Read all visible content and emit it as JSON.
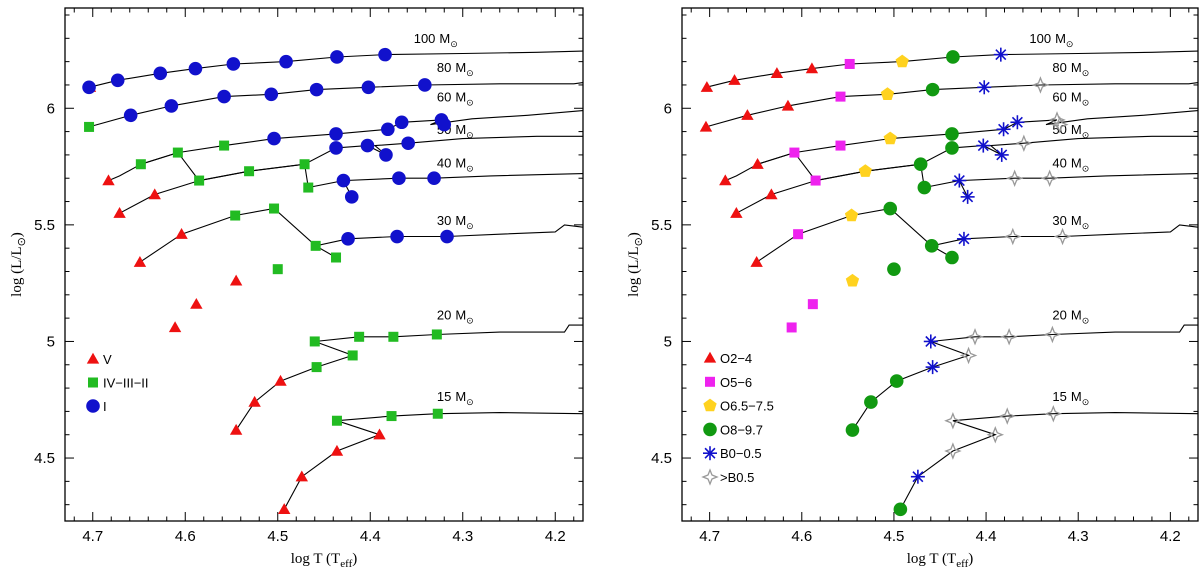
{
  "chart_data": [
    {
      "type": "scatter",
      "name": "luminosity-class",
      "xlabel": "log (T_eff)",
      "ylabel": "log (L/L_sun)",
      "xlim": [
        4.73,
        4.17
      ],
      "ylim": [
        4.23,
        6.43
      ],
      "xticks": [
        4.7,
        4.6,
        4.5,
        4.4,
        4.3,
        4.2
      ],
      "yticks": [
        4.5,
        5,
        5.5,
        6
      ],
      "legend": "bottom-left",
      "legend_entries": [
        {
          "label": "V",
          "marker": "triangle",
          "color": "#ee1111"
        },
        {
          "label": "IV−III−II",
          "marker": "square",
          "color": "#22bb22"
        },
        {
          "label": "I",
          "marker": "circle",
          "color": "#1111cc"
        }
      ],
      "series": [
        {
          "name": "V",
          "points": [
            [
              4.703,
              6.09
            ],
            [
              4.683,
              5.69
            ],
            [
              4.671,
              5.55
            ],
            [
              4.649,
              5.34
            ],
            [
              4.633,
              5.63
            ],
            [
              4.604,
              5.46
            ],
            [
              4.611,
              5.06
            ],
            [
              4.588,
              5.16
            ],
            [
              4.545,
              5.26
            ],
            [
              4.525,
              4.74
            ],
            [
              4.545,
              4.62
            ],
            [
              4.497,
              4.83
            ],
            [
              4.474,
              4.42
            ],
            [
              4.493,
              4.28
            ],
            [
              4.436,
              4.53
            ],
            [
              4.39,
              4.6
            ]
          ]
        },
        {
          "name": "IV−III−II",
          "points": [
            [
              4.704,
              5.92
            ],
            [
              4.648,
              5.76
            ],
            [
              4.608,
              5.81
            ],
            [
              4.585,
              5.69
            ],
            [
              4.558,
              5.84
            ],
            [
              4.531,
              5.73
            ],
            [
              4.546,
              5.54
            ],
            [
              4.504,
              5.57
            ],
            [
              4.471,
              5.76
            ],
            [
              4.467,
              5.66
            ],
            [
              4.459,
              5.41
            ],
            [
              4.437,
              5.36
            ],
            [
              4.5,
              5.31
            ],
            [
              4.46,
              5.0
            ],
            [
              4.412,
              5.02
            ],
            [
              4.375,
              5.02
            ],
            [
              4.328,
              5.03
            ],
            [
              4.458,
              4.89
            ],
            [
              4.419,
              4.94
            ],
            [
              4.436,
              4.66
            ],
            [
              4.377,
              4.68
            ],
            [
              4.327,
              4.69
            ]
          ]
        },
        {
          "name": "I",
          "points": [
            [
              4.704,
              6.09
            ],
            [
              4.673,
              6.12
            ],
            [
              4.627,
              6.15
            ],
            [
              4.589,
              6.17
            ],
            [
              4.548,
              6.19
            ],
            [
              4.491,
              6.2
            ],
            [
              4.436,
              6.22
            ],
            [
              4.384,
              6.23
            ],
            [
              4.659,
              5.97
            ],
            [
              4.615,
              6.01
            ],
            [
              4.558,
              6.05
            ],
            [
              4.507,
              6.06
            ],
            [
              4.458,
              6.08
            ],
            [
              4.402,
              6.09
            ],
            [
              4.341,
              6.1
            ],
            [
              4.504,
              5.87
            ],
            [
              4.437,
              5.89
            ],
            [
              4.381,
              5.91
            ],
            [
              4.366,
              5.94
            ],
            [
              4.323,
              5.95
            ],
            [
              4.32,
              5.93
            ],
            [
              4.437,
              5.83
            ],
            [
              4.403,
              5.84
            ],
            [
              4.359,
              5.85
            ],
            [
              4.383,
              5.8
            ],
            [
              4.429,
              5.69
            ],
            [
              4.42,
              5.62
            ],
            [
              4.369,
              5.7
            ],
            [
              4.331,
              5.7
            ],
            [
              4.424,
              5.44
            ],
            [
              4.371,
              5.45
            ],
            [
              4.317,
              5.45
            ]
          ]
        }
      ]
    },
    {
      "type": "scatter",
      "name": "spectral-type",
      "xlabel": "log (T_eff)",
      "ylabel": "log (L/L_sun)",
      "xlim": [
        4.73,
        4.17
      ],
      "ylim": [
        4.23,
        6.43
      ],
      "xticks": [
        4.7,
        4.6,
        4.5,
        4.4,
        4.3,
        4.2
      ],
      "yticks": [
        4.5,
        5,
        5.5,
        6
      ],
      "legend": "bottom-left",
      "legend_entries": [
        {
          "label": "O2−4",
          "marker": "triangle",
          "color": "#ee1111"
        },
        {
          "label": "O5−6",
          "marker": "square",
          "color": "#ee22ee"
        },
        {
          "label": "O6.5−7.5",
          "marker": "pentagon",
          "color": "#ffd21f"
        },
        {
          "label": "O8−9.7",
          "marker": "circle",
          "color": "#119911"
        },
        {
          "label": "B0−0.5",
          "marker": "asterisk",
          "color": "#1111cc"
        },
        {
          "label": ">B0.5",
          "marker": "star",
          "color": "#999999"
        }
      ],
      "series": [
        {
          "name": "O2−4",
          "points": [
            [
              4.703,
              6.09
            ],
            [
              4.673,
              6.12
            ],
            [
              4.627,
              6.15
            ],
            [
              4.589,
              6.17
            ],
            [
              4.704,
              5.92
            ],
            [
              4.659,
              5.97
            ],
            [
              4.615,
              6.01
            ],
            [
              4.683,
              5.69
            ],
            [
              4.648,
              5.76
            ],
            [
              4.671,
              5.55
            ],
            [
              4.633,
              5.63
            ],
            [
              4.649,
              5.34
            ]
          ]
        },
        {
          "name": "O5−6",
          "points": [
            [
              4.548,
              6.19
            ],
            [
              4.558,
              6.05
            ],
            [
              4.608,
              5.81
            ],
            [
              4.558,
              5.84
            ],
            [
              4.585,
              5.69
            ],
            [
              4.604,
              5.46
            ],
            [
              4.588,
              5.16
            ],
            [
              4.611,
              5.06
            ]
          ]
        },
        {
          "name": "O6.5−7.5",
          "points": [
            [
              4.491,
              6.2
            ],
            [
              4.507,
              6.06
            ],
            [
              4.504,
              5.87
            ],
            [
              4.531,
              5.73
            ],
            [
              4.546,
              5.54
            ],
            [
              4.545,
              5.26
            ]
          ]
        },
        {
          "name": "O8−9.7",
          "points": [
            [
              4.436,
              6.22
            ],
            [
              4.458,
              6.08
            ],
            [
              4.437,
              5.89
            ],
            [
              4.437,
              5.83
            ],
            [
              4.471,
              5.76
            ],
            [
              4.467,
              5.66
            ],
            [
              4.504,
              5.57
            ],
            [
              4.459,
              5.41
            ],
            [
              4.5,
              5.31
            ],
            [
              4.437,
              5.36
            ],
            [
              4.497,
              4.83
            ],
            [
              4.525,
              4.74
            ],
            [
              4.545,
              4.62
            ],
            [
              4.493,
              4.28
            ]
          ]
        },
        {
          "name": "B0−0.5",
          "points": [
            [
              4.384,
              6.23
            ],
            [
              4.402,
              6.09
            ],
            [
              4.381,
              5.91
            ],
            [
              4.366,
              5.94
            ],
            [
              4.403,
              5.84
            ],
            [
              4.383,
              5.8
            ],
            [
              4.429,
              5.69
            ],
            [
              4.42,
              5.62
            ],
            [
              4.424,
              5.44
            ],
            [
              4.46,
              5.0
            ],
            [
              4.458,
              4.89
            ],
            [
              4.474,
              4.42
            ]
          ]
        },
        {
          "name": ">B0.5",
          "points": [
            [
              4.341,
              6.1
            ],
            [
              4.323,
              5.95
            ],
            [
              4.32,
              5.93
            ],
            [
              4.359,
              5.85
            ],
            [
              4.369,
              5.7
            ],
            [
              4.331,
              5.7
            ],
            [
              4.371,
              5.45
            ],
            [
              4.317,
              5.45
            ],
            [
              4.412,
              5.02
            ],
            [
              4.375,
              5.02
            ],
            [
              4.328,
              5.03
            ],
            [
              4.419,
              4.94
            ],
            [
              4.436,
              4.66
            ],
            [
              4.377,
              4.68
            ],
            [
              4.327,
              4.69
            ],
            [
              4.436,
              4.53
            ],
            [
              4.39,
              4.6
            ]
          ]
        }
      ]
    }
  ],
  "tracks": [
    {
      "mass": "100",
      "unit": "M",
      "label_at": [
        4.353,
        6.28
      ],
      "points": [
        [
          4.704,
          6.09
        ],
        [
          4.673,
          6.12
        ],
        [
          4.627,
          6.15
        ],
        [
          4.589,
          6.17
        ],
        [
          4.548,
          6.19
        ],
        [
          4.491,
          6.2
        ],
        [
          4.436,
          6.22
        ],
        [
          4.384,
          6.23
        ],
        [
          4.3,
          6.235
        ],
        [
          4.22,
          6.24
        ],
        [
          4.17,
          6.245
        ]
      ]
    },
    {
      "mass": "80",
      "unit": "M",
      "label_at": [
        4.328,
        6.155
      ],
      "points": [
        [
          4.704,
          5.92
        ],
        [
          4.659,
          5.97
        ],
        [
          4.615,
          6.01
        ],
        [
          4.558,
          6.05
        ],
        [
          4.507,
          6.06
        ],
        [
          4.458,
          6.08
        ],
        [
          4.402,
          6.09
        ],
        [
          4.341,
          6.1
        ],
        [
          4.26,
          6.105
        ],
        [
          4.18,
          6.105
        ],
        [
          4.17,
          6.11
        ]
      ]
    },
    {
      "mass": "60",
      "unit": "M",
      "label_at": [
        4.328,
        6.03
      ],
      "points": [
        [
          4.648,
          5.76
        ],
        [
          4.608,
          5.81
        ],
        [
          4.558,
          5.84
        ],
        [
          4.504,
          5.87
        ],
        [
          4.437,
          5.89
        ],
        [
          4.381,
          5.91
        ],
        [
          4.366,
          5.94
        ],
        [
          4.323,
          5.95
        ],
        [
          4.335,
          5.93
        ],
        [
          4.29,
          5.955
        ],
        [
          4.23,
          5.97
        ],
        [
          4.17,
          5.99
        ]
      ]
    },
    {
      "mass": "50",
      "unit": "M",
      "label_at": [
        4.328,
        5.89
      ],
      "points": [
        [
          4.683,
          5.69
        ],
        [
          4.671,
          5.71
        ],
        [
          4.648,
          5.76
        ],
        [
          4.608,
          5.81
        ],
        [
          4.585,
          5.69
        ],
        [
          4.531,
          5.73
        ],
        [
          4.471,
          5.76
        ],
        [
          4.437,
          5.83
        ],
        [
          4.403,
          5.84
        ],
        [
          4.383,
          5.8
        ],
        [
          4.395,
          5.84
        ],
        [
          4.359,
          5.85
        ],
        [
          4.3,
          5.87
        ],
        [
          4.22,
          5.88
        ],
        [
          4.17,
          5.88
        ]
      ]
    },
    {
      "mass": "40",
      "unit": "M",
      "label_at": [
        4.328,
        5.745
      ],
      "points": [
        [
          4.671,
          5.55
        ],
        [
          4.633,
          5.63
        ],
        [
          4.585,
          5.69
        ],
        [
          4.531,
          5.73
        ],
        [
          4.471,
          5.76
        ],
        [
          4.467,
          5.66
        ],
        [
          4.429,
          5.69
        ],
        [
          4.42,
          5.62
        ],
        [
          4.429,
          5.69
        ],
        [
          4.369,
          5.7
        ],
        [
          4.331,
          5.7
        ],
        [
          4.27,
          5.71
        ],
        [
          4.17,
          5.72
        ]
      ]
    },
    {
      "mass": "30",
      "unit": "M",
      "label_at": [
        4.328,
        5.5
      ],
      "points": [
        [
          4.649,
          5.34
        ],
        [
          4.604,
          5.46
        ],
        [
          4.546,
          5.54
        ],
        [
          4.504,
          5.57
        ],
        [
          4.459,
          5.41
        ],
        [
          4.437,
          5.36
        ],
        [
          4.459,
          5.41
        ],
        [
          4.424,
          5.44
        ],
        [
          4.371,
          5.45
        ],
        [
          4.317,
          5.45
        ],
        [
          4.26,
          5.46
        ],
        [
          4.2,
          5.47
        ],
        [
          4.19,
          5.5
        ],
        [
          4.17,
          5.49
        ]
      ]
    },
    {
      "mass": "20",
      "unit": "M",
      "label_at": [
        4.328,
        5.095
      ],
      "points": [
        [
          4.545,
          4.62
        ],
        [
          4.525,
          4.74
        ],
        [
          4.497,
          4.83
        ],
        [
          4.458,
          4.89
        ],
        [
          4.419,
          4.94
        ],
        [
          4.46,
          5.0
        ],
        [
          4.412,
          5.02
        ],
        [
          4.375,
          5.02
        ],
        [
          4.328,
          5.03
        ],
        [
          4.26,
          5.04
        ],
        [
          4.19,
          5.04
        ],
        [
          4.185,
          5.07
        ],
        [
          4.17,
          5.07
        ]
      ]
    },
    {
      "mass": "15",
      "unit": "M",
      "label_at": [
        4.328,
        4.745
      ],
      "points": [
        [
          4.493,
          4.28
        ],
        [
          4.474,
          4.42
        ],
        [
          4.436,
          4.53
        ],
        [
          4.39,
          4.6
        ],
        [
          4.436,
          4.66
        ],
        [
          4.377,
          4.68
        ],
        [
          4.327,
          4.69
        ],
        [
          4.26,
          4.695
        ],
        [
          4.17,
          4.69
        ]
      ]
    }
  ]
}
